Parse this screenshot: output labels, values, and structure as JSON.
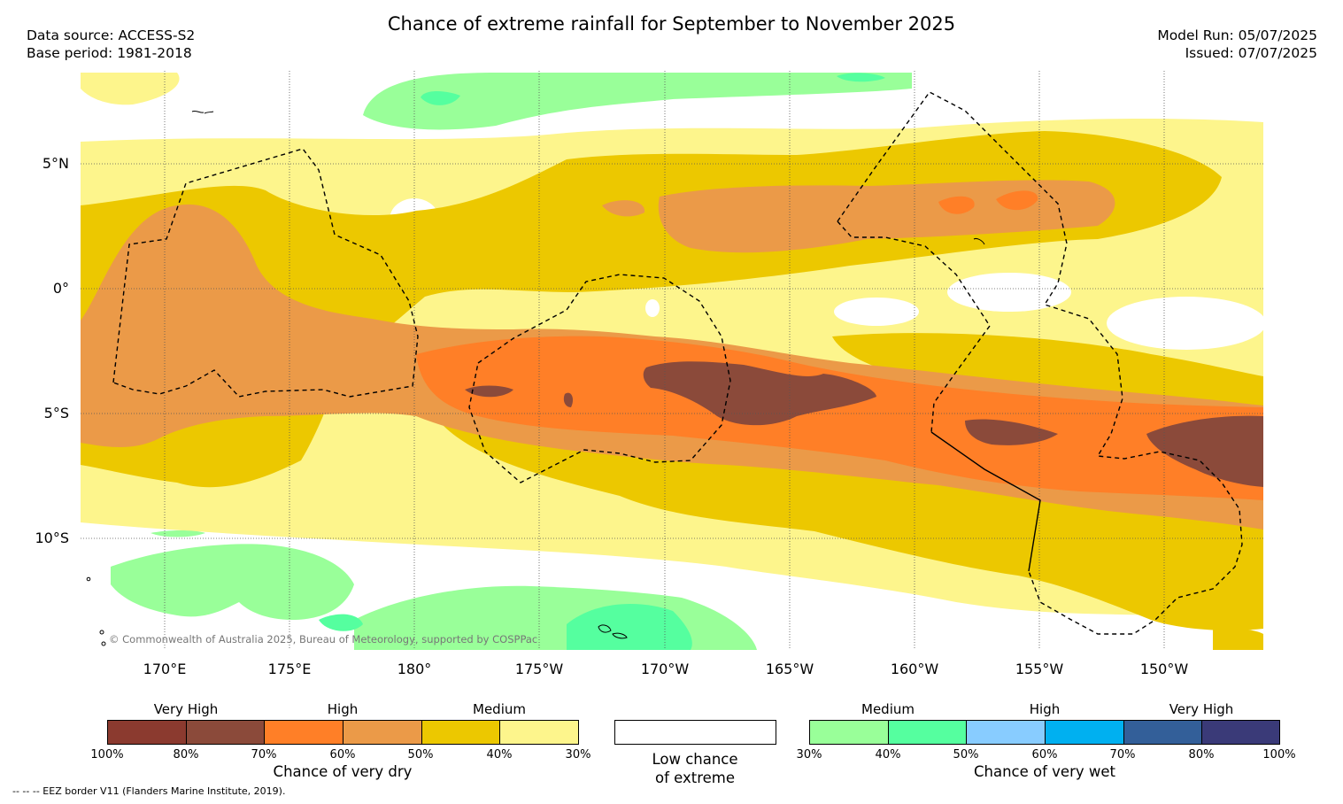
{
  "header": {
    "title": "Chance of extreme rainfall for September to November 2025",
    "data_source": "Data source: ACCESS-S2",
    "base_period": "Base period: 1981-2018",
    "model_run": "Model Run: 05/07/2025",
    "issued": "Issued: 07/07/2025"
  },
  "map": {
    "lat_labels": [
      "5°N",
      "0°",
      "5°S",
      "10°S"
    ],
    "lon_labels": [
      "170°E",
      "175°E",
      "180°",
      "175°W",
      "170°W",
      "165°W",
      "160°W",
      "155°W",
      "150°W"
    ],
    "copyright": "© Commonwealth of Australia 2025, Bureau of Meteorology, supported by COSPPac",
    "colors": {
      "dry_very_high_1": "#8b3a2f",
      "dry_very_high_2": "#8b4a3a",
      "dry_high_1": "#ff7f27",
      "dry_high_2": "#eb9a48",
      "dry_medium_1": "#ecc800",
      "dry_medium_2": "#fdf58c",
      "wet_medium_1": "#99ff99",
      "wet_medium_2": "#55ff9f",
      "wet_high_1": "#88ccff",
      "wet_high_2": "#00b0f0",
      "wet_very_high_1": "#335f99",
      "wet_very_high_2": "#3a3a78"
    }
  },
  "legend": {
    "dry": {
      "levels": [
        "Very High",
        "High",
        "Medium"
      ],
      "ticks": [
        "100%",
        "80%",
        "70%",
        "60%",
        "50%",
        "40%",
        "30%"
      ],
      "title": "Chance of very dry"
    },
    "neutral": {
      "line1": "Low chance",
      "line2": "of extreme"
    },
    "wet": {
      "levels": [
        "Medium",
        "High",
        "Very High"
      ],
      "ticks": [
        "30%",
        "40%",
        "50%",
        "60%",
        "70%",
        "80%",
        "100%"
      ],
      "title": "Chance of very wet"
    },
    "eez_note": "-- -- -- EEZ border V11 (Flanders Marine Institute, 2019)."
  }
}
